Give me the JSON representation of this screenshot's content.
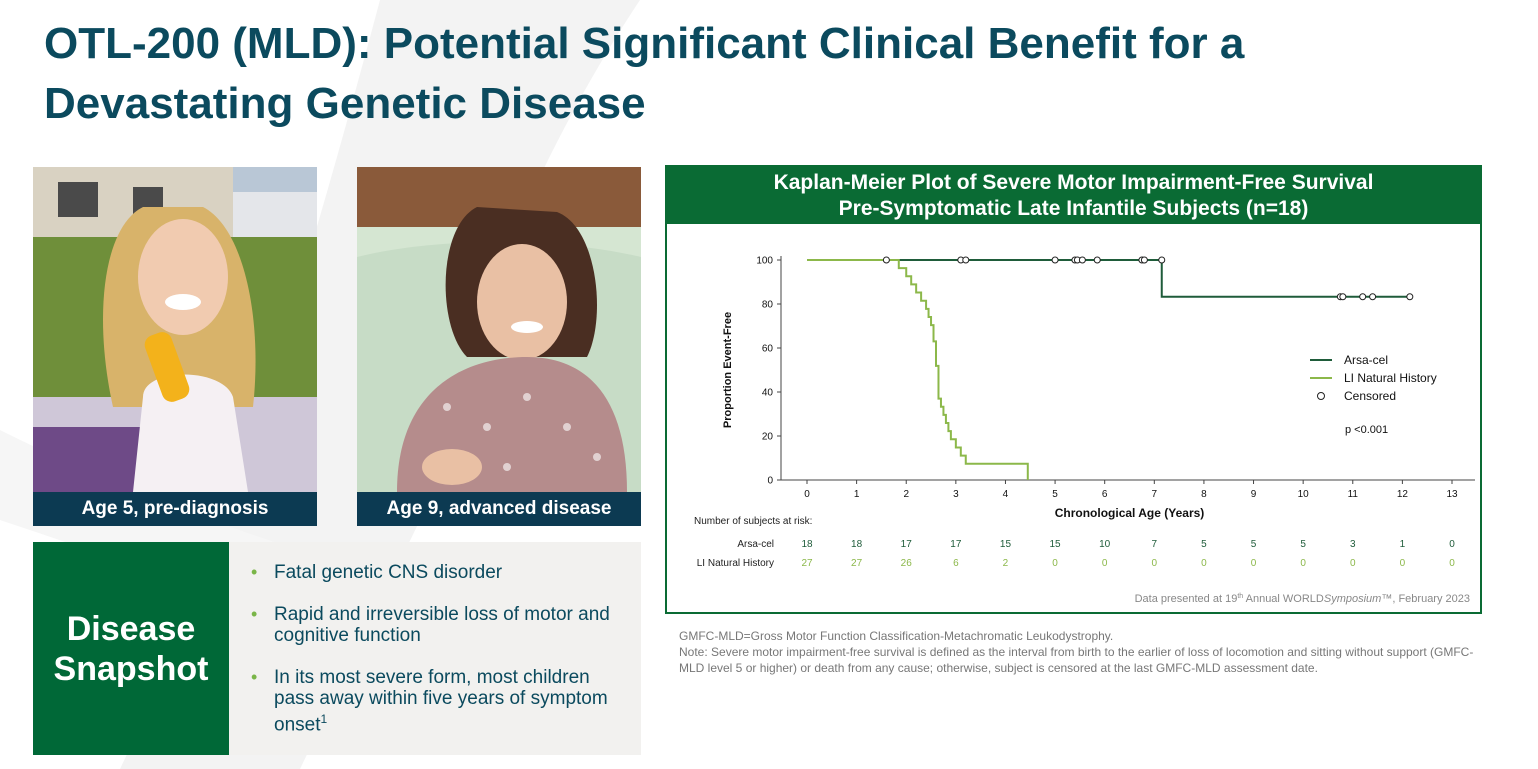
{
  "title": {
    "line1": "OTL-200 (MLD): Potential Significant Clinical Benefit for a",
    "line2": "Devastating Genetic Disease"
  },
  "photos": {
    "left_caption": "Age 5, pre-diagnosis",
    "right_caption": "Age 9, advanced disease"
  },
  "snapshot": {
    "heading_line1": "Disease",
    "heading_line2": "Snapshot",
    "bullets": [
      "Fatal genetic CNS disorder",
      "Rapid and irreversible loss of motor and cognitive function",
      "In its most severe form, most children pass away within five years of symptom onset"
    ],
    "bullet3_footnote": "1"
  },
  "km": {
    "title_line1": "Kaplan-Meier Plot of Severe Motor Impairment-Free Survival",
    "title_line2": "Pre-Symptomatic Late Infantile Subjects (n=18)",
    "risk_label": "Number of subjects at risk:",
    "source_prefix": "Data presented at 19",
    "source_sup": "th",
    "source_mid": " Annual WORLD",
    "source_italic": "Symposium",
    "source_suffix": "™, February 2023",
    "colors": {
      "arsa": "#1f5c3a",
      "natural": "#8cb84a",
      "frame": "#0a6b34"
    }
  },
  "chart_data": {
    "type": "line",
    "title": "Kaplan-Meier Plot of Severe Motor Impairment-Free Survival Pre-Symptomatic Late Infantile Subjects (n=18)",
    "xlabel": "Chronological Age (Years)",
    "ylabel": "Proportion Event-Free",
    "xlim": [
      0,
      13
    ],
    "ylim": [
      0,
      100
    ],
    "x_ticks": [
      0,
      1,
      2,
      3,
      4,
      5,
      6,
      7,
      8,
      9,
      10,
      11,
      12,
      13
    ],
    "y_ticks": [
      0,
      20,
      40,
      60,
      80,
      100
    ],
    "legend_position": "right",
    "annotation": "p <0.001",
    "series": [
      {
        "name": "Arsa-cel",
        "step_x": [
          0,
          7.15,
          12.15
        ],
        "step_y": [
          100,
          83.3,
          83.3
        ],
        "censored": [
          {
            "x": 1.6,
            "y": 100
          },
          {
            "x": 3.1,
            "y": 100
          },
          {
            "x": 3.2,
            "y": 100
          },
          {
            "x": 5.0,
            "y": 100
          },
          {
            "x": 5.4,
            "y": 100
          },
          {
            "x": 5.45,
            "y": 100
          },
          {
            "x": 5.55,
            "y": 100
          },
          {
            "x": 5.85,
            "y": 100
          },
          {
            "x": 6.75,
            "y": 100
          },
          {
            "x": 6.8,
            "y": 100
          },
          {
            "x": 7.15,
            "y": 100
          },
          {
            "x": 10.75,
            "y": 83.3
          },
          {
            "x": 10.8,
            "y": 83.3
          },
          {
            "x": 11.2,
            "y": 83.3
          },
          {
            "x": 11.4,
            "y": 83.3
          },
          {
            "x": 12.15,
            "y": 83.3
          }
        ]
      },
      {
        "name": "LI Natural History",
        "step_x": [
          0,
          1.85,
          2.0,
          2.1,
          2.2,
          2.3,
          2.4,
          2.45,
          2.5,
          2.55,
          2.6,
          2.65,
          2.7,
          2.75,
          2.8,
          2.85,
          2.9,
          3.0,
          3.1,
          3.2,
          3.4,
          3.6,
          4.45
        ],
        "step_y": [
          100,
          96.3,
          92.6,
          88.9,
          85.2,
          81.5,
          77.8,
          74.1,
          70.4,
          63.0,
          51.9,
          37.0,
          33.3,
          29.6,
          25.9,
          22.2,
          18.5,
          14.8,
          11.1,
          7.4,
          7.4,
          7.4,
          0
        ]
      }
    ],
    "legend": [
      "Arsa-cel",
      "LI Natural History",
      "Censored"
    ],
    "risk_table": {
      "times": [
        0,
        1,
        2,
        3,
        4,
        5,
        6,
        7,
        8,
        9,
        10,
        11,
        12,
        13
      ],
      "rows": [
        {
          "name": "Arsa-cel",
          "values": [
            18,
            18,
            17,
            17,
            15,
            15,
            10,
            7,
            5,
            5,
            5,
            3,
            1,
            0
          ]
        },
        {
          "name": "LI Natural History",
          "values": [
            27,
            27,
            26,
            6,
            2,
            0,
            0,
            0,
            0,
            0,
            0,
            0,
            0,
            0
          ]
        }
      ]
    }
  },
  "notes": {
    "line1": "GMFC-MLD=Gross Motor Function Classification-Metachromatic Leukodystrophy.",
    "line2": "Note: Severe motor impairment-free survival is defined as the interval from birth to the earlier of loss of locomotion and sitting without support (GMFC-MLD level 5 or higher) or death from any cause; otherwise, subject is censored at the last GMFC-MLD assessment date."
  }
}
